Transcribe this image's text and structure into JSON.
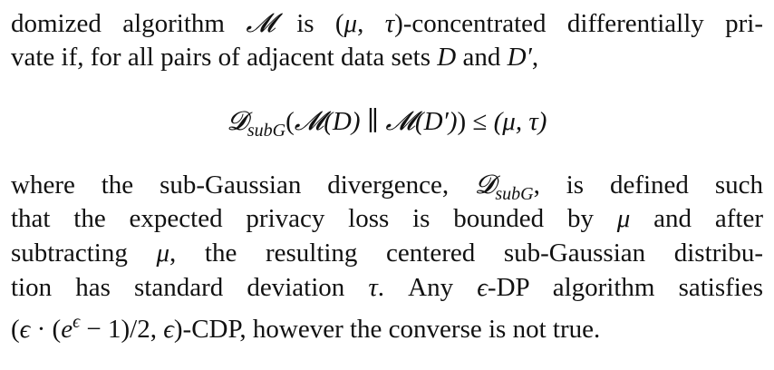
{
  "paragraph1": {
    "line1": {
      "pre": "domized algorithm ",
      "symbol_M": "𝓜",
      "mid": " is (",
      "mu": "μ",
      "comma": ", ",
      "tau": "τ",
      "post": ")-concentrated differentially pri-"
    },
    "line2": {
      "pre": "vate if, for all pairs of adjacent data sets ",
      "D": "D",
      "and": " and ",
      "Dprime": "D′",
      "post": ","
    }
  },
  "equation": {
    "divergence_symbol": "𝓓",
    "subscript": "subG",
    "open": "(",
    "M1": "𝓜",
    "arg1": "(D)",
    "separator": " ∥ ",
    "M2": "𝓜",
    "arg2": "(D′)",
    "close": ")",
    "leq": " ≤ ",
    "rhs": "(μ, τ)"
  },
  "paragraph2": {
    "line1": {
      "pre": "where the sub-Gaussian divergence, ",
      "divergence_symbol": "𝓓",
      "subscript": "subG",
      "post": ", is defined such"
    },
    "line2": {
      "pre": "that the expected privacy loss is bounded by ",
      "mu": "μ",
      "post": " and after"
    },
    "line3": {
      "pre": "subtracting ",
      "mu": "μ",
      "post": ", the resulting centered sub-Gaussian distribu-"
    },
    "line4": {
      "pre": "tion has standard deviation ",
      "tau": "τ",
      "mid": ". Any ",
      "eps": "ϵ",
      "post": "-DP algorithm satisfies"
    },
    "line5": {
      "open": "(",
      "eps1": "ϵ",
      "dot": " · (",
      "e": "e",
      "sup_eps": "ϵ",
      "minus": " − 1)/2, ",
      "eps2": "ϵ",
      "post": ")-CDP, however the converse is not true."
    }
  }
}
